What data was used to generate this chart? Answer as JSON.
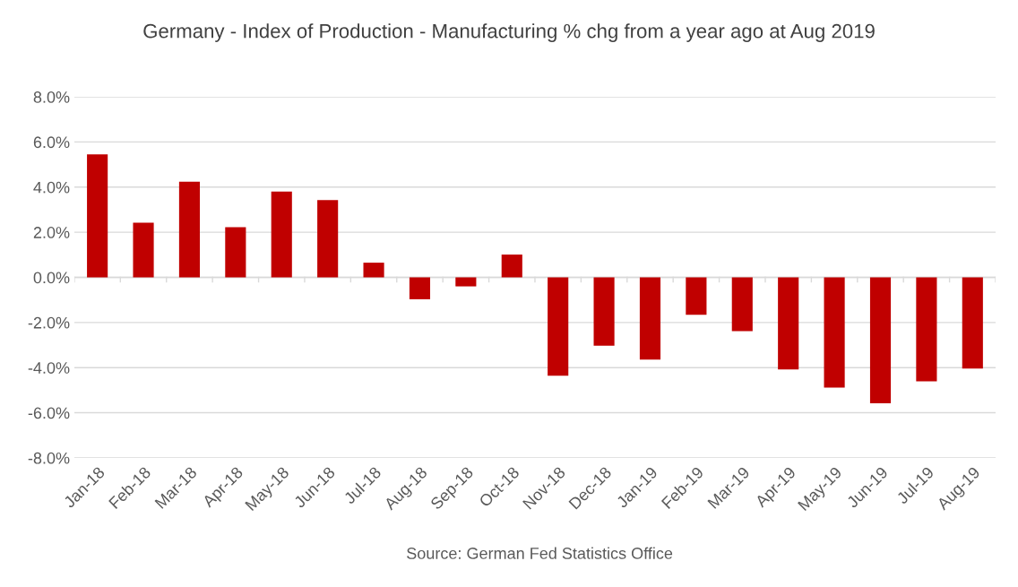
{
  "chart_data": {
    "type": "bar",
    "title": "Germany - Index of Production - Manufacturing % chg from a year ago at Aug 2019",
    "categories": [
      "Jan-18",
      "Feb-18",
      "Mar-18",
      "Apr-18",
      "May-18",
      "Jun-18",
      "Jul-18",
      "Aug-18",
      "Sep-18",
      "Oct-18",
      "Nov-18",
      "Dec-18",
      "Jan-19",
      "Feb-19",
      "Mar-19",
      "Apr-19",
      "May-19",
      "Jun-19",
      "Jul-19",
      "Aug-19"
    ],
    "values": [
      5.45,
      2.42,
      4.24,
      2.22,
      3.8,
      3.43,
      0.65,
      -0.97,
      -0.4,
      1.01,
      -4.36,
      -3.03,
      -3.64,
      -1.66,
      -2.38,
      -4.08,
      -4.89,
      -5.58,
      -4.61,
      -4.04
    ],
    "color": "#c00000",
    "ylim": [
      -8,
      8
    ],
    "yticks": [
      {
        "value": -8,
        "label": "-8.0%"
      },
      {
        "value": -6,
        "label": "-6.0%"
      },
      {
        "value": -4,
        "label": "-4.0%"
      },
      {
        "value": -2,
        "label": "-2.0%"
      },
      {
        "value": 0,
        "label": "0.0%"
      },
      {
        "value": 2,
        "label": "2.0%"
      },
      {
        "value": 4,
        "label": "4.0%"
      },
      {
        "value": 6,
        "label": "6.0%"
      },
      {
        "value": 8,
        "label": "8.0%"
      }
    ],
    "grid": "y",
    "annotations": [
      "Source: German Fed Statistics Office"
    ]
  }
}
